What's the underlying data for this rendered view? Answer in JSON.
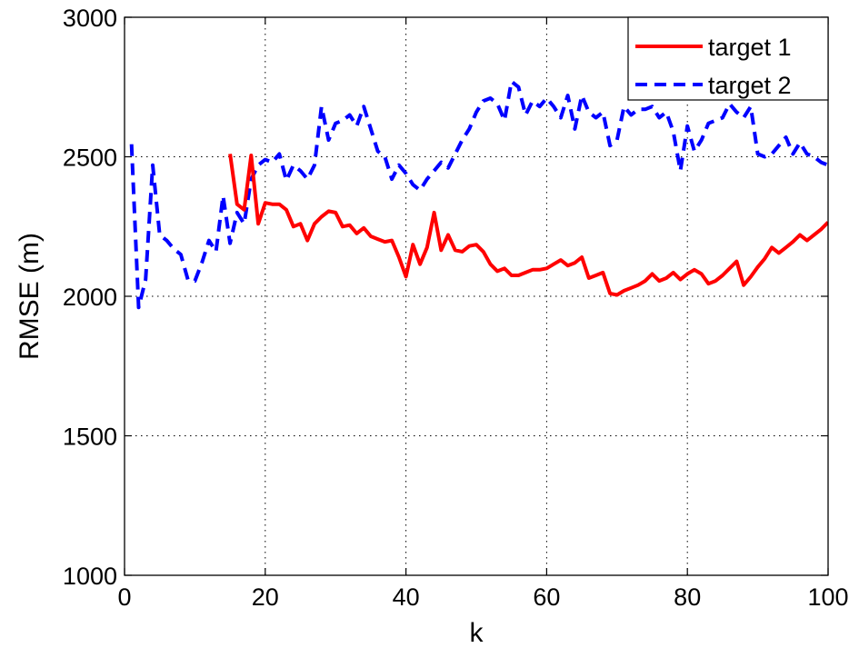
{
  "chart_data": {
    "type": "line",
    "title": "",
    "xlabel": "k",
    "ylabel": "RMSE (m)",
    "xlim": [
      0,
      100
    ],
    "ylim": [
      1000,
      3000
    ],
    "xticks": [
      0,
      20,
      40,
      60,
      80,
      100
    ],
    "yticks": [
      1000,
      1500,
      2000,
      2500,
      3000
    ],
    "grid": true,
    "legend_position": "top-right",
    "series": [
      {
        "name": "target 1",
        "color": "#ff0000",
        "style": "solid",
        "x": [
          15,
          16,
          17,
          18,
          19,
          20,
          21,
          22,
          23,
          24,
          25,
          26,
          27,
          28,
          29,
          30,
          31,
          32,
          33,
          34,
          35,
          36,
          37,
          38,
          39,
          40,
          41,
          42,
          43,
          44,
          45,
          46,
          47,
          48,
          49,
          50,
          51,
          52,
          53,
          54,
          55,
          56,
          57,
          58,
          59,
          60,
          61,
          62,
          63,
          64,
          65,
          66,
          67,
          68,
          69,
          70,
          71,
          72,
          73,
          74,
          75,
          76,
          77,
          78,
          79,
          80,
          81,
          82,
          83,
          84,
          85,
          86,
          87,
          88,
          89,
          90,
          91,
          92,
          93,
          94,
          95,
          96,
          97,
          98,
          99,
          100
        ],
        "y": [
          2510,
          2330,
          2310,
          2505,
          2260,
          2335,
          2330,
          2330,
          2310,
          2250,
          2260,
          2200,
          2260,
          2285,
          2305,
          2300,
          2250,
          2255,
          2225,
          2245,
          2215,
          2205,
          2195,
          2200,
          2140,
          2070,
          2185,
          2115,
          2175,
          2300,
          2165,
          2220,
          2165,
          2160,
          2180,
          2185,
          2160,
          2115,
          2090,
          2100,
          2075,
          2075,
          2085,
          2095,
          2095,
          2100,
          2115,
          2130,
          2110,
          2120,
          2140,
          2065,
          2075,
          2085,
          2010,
          2005,
          2020,
          2030,
          2040,
          2055,
          2080,
          2055,
          2065,
          2085,
          2060,
          2080,
          2095,
          2080,
          2045,
          2055,
          2075,
          2100,
          2125,
          2040,
          2070,
          2105,
          2135,
          2175,
          2155,
          2175,
          2195,
          2220,
          2200,
          2220,
          2240,
          2265
        ]
      },
      {
        "name": "target 2",
        "color": "#0000ff",
        "style": "dashed",
        "x": [
          1,
          2,
          3,
          4,
          5,
          6,
          7,
          8,
          9,
          10,
          11,
          12,
          13,
          14,
          15,
          16,
          17,
          18,
          19,
          20,
          21,
          22,
          23,
          24,
          25,
          26,
          27,
          28,
          29,
          30,
          31,
          32,
          33,
          34,
          35,
          36,
          37,
          38,
          39,
          40,
          41,
          42,
          43,
          44,
          45,
          46,
          47,
          48,
          49,
          50,
          51,
          52,
          53,
          54,
          55,
          56,
          57,
          58,
          59,
          60,
          61,
          62,
          63,
          64,
          65,
          66,
          67,
          68,
          69,
          70,
          71,
          72,
          73,
          74,
          75,
          76,
          77,
          78,
          79,
          80,
          81,
          82,
          83,
          84,
          85,
          86,
          87,
          88,
          89,
          90,
          91,
          92,
          93,
          94,
          95,
          96,
          97,
          98,
          99,
          100
        ],
        "y": [
          2545,
          1960,
          2060,
          2470,
          2220,
          2200,
          2170,
          2150,
          2060,
          2055,
          2120,
          2200,
          2160,
          2360,
          2190,
          2300,
          2260,
          2420,
          2470,
          2490,
          2480,
          2510,
          2415,
          2470,
          2450,
          2420,
          2470,
          2680,
          2560,
          2620,
          2630,
          2650,
          2610,
          2680,
          2600,
          2520,
          2500,
          2420,
          2470,
          2440,
          2400,
          2380,
          2420,
          2450,
          2480,
          2460,
          2510,
          2560,
          2600,
          2660,
          2700,
          2710,
          2690,
          2630,
          2770,
          2750,
          2650,
          2700,
          2680,
          2710,
          2680,
          2640,
          2720,
          2600,
          2720,
          2660,
          2640,
          2660,
          2540,
          2560,
          2680,
          2650,
          2670,
          2670,
          2680,
          2640,
          2660,
          2590,
          2450,
          2610,
          2520,
          2560,
          2620,
          2630,
          2640,
          2690,
          2660,
          2640,
          2680,
          2510,
          2500,
          2510,
          2540,
          2570,
          2510,
          2550,
          2510,
          2500,
          2480,
          2470
        ]
      }
    ]
  }
}
